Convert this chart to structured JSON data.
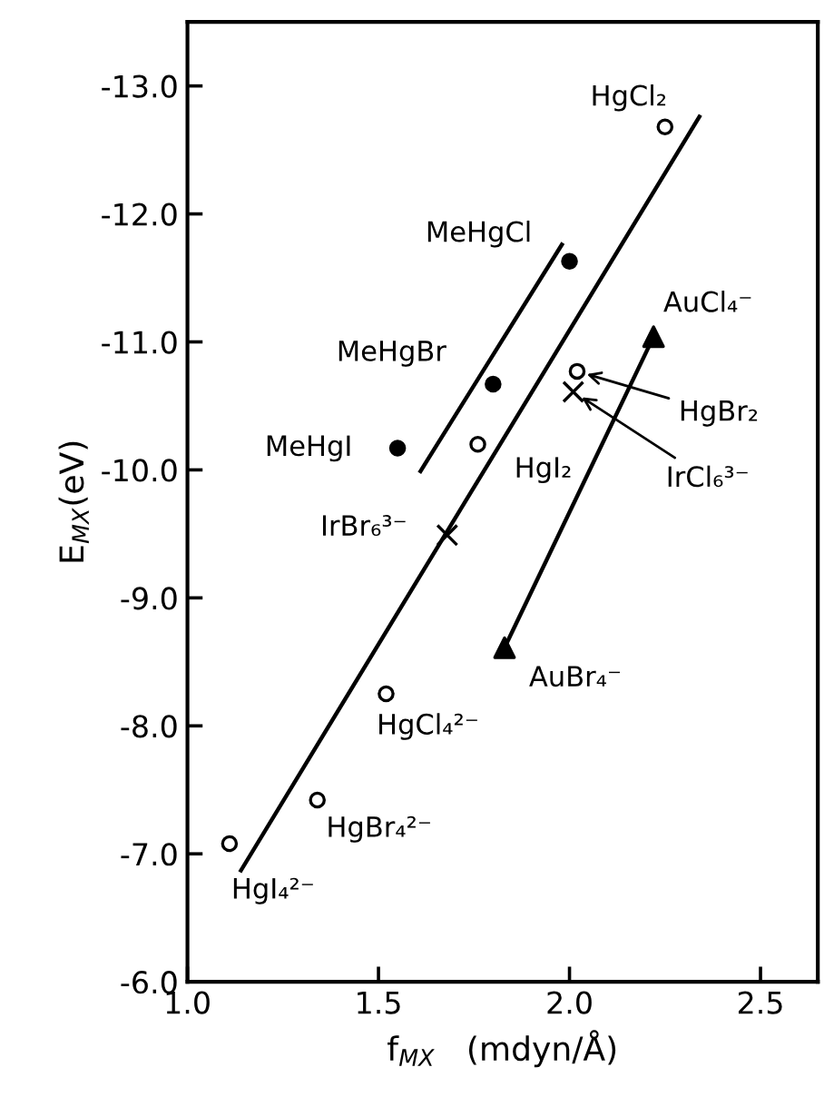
{
  "chart_data": {
    "type": "scatter",
    "xlabel": "f$_{MX}$   (mdyn/Å)",
    "ylabel": "E$_{MX}$(eV)",
    "xlim": [
      1.0,
      2.65
    ],
    "ylim": [
      -6.0,
      -13.5
    ],
    "xticks": [
      {
        "value": 1.0,
        "label": "1.0"
      },
      {
        "value": 1.5,
        "label": "1.5"
      },
      {
        "value": 2.0,
        "label": "2.0"
      },
      {
        "value": 2.5,
        "label": "2.5"
      }
    ],
    "yticks": [
      {
        "value": -6.0,
        "label": "-6.0"
      },
      {
        "value": -7.0,
        "label": "-7.0"
      },
      {
        "value": -8.0,
        "label": "-8.0"
      },
      {
        "value": -9.0,
        "label": "-9.0"
      },
      {
        "value": -10.0,
        "label": "-10.0"
      },
      {
        "value": -11.0,
        "label": "-11.0"
      },
      {
        "value": -12.0,
        "label": "-12.0"
      },
      {
        "value": -13.0,
        "label": "-13.0"
      }
    ],
    "grid": false,
    "legend": false,
    "series": [
      {
        "type": "scatter",
        "marker": "circle_open",
        "color": "#000000",
        "x": [
          2.25,
          1.76,
          2.02,
          1.52,
          1.34,
          1.11
        ],
        "values": [
          -12.68,
          -10.2,
          -10.77,
          -8.25,
          -7.42,
          -7.08
        ]
      },
      {
        "type": "scatter",
        "marker": "circle",
        "color": "#000000",
        "x": [
          2.0,
          1.8,
          1.55
        ],
        "values": [
          -11.63,
          -10.67,
          -10.17
        ]
      },
      {
        "type": "scatter",
        "marker": "cross",
        "color": "#000000",
        "x": [
          1.68,
          2.01
        ],
        "values": [
          -9.49,
          -10.61
        ]
      },
      {
        "type": "scatter",
        "marker": "triangle",
        "color": "#000000",
        "x": [
          2.22,
          1.83
        ],
        "values": [
          -11.04,
          -8.61
        ]
      },
      {
        "type": "line",
        "marker": "none",
        "color": "#000000",
        "x": [
          1.14,
          2.34
        ],
        "values": [
          -6.87,
          -12.76
        ]
      },
      {
        "type": "line",
        "marker": "none",
        "color": "#000000",
        "x": [
          1.61,
          1.98
        ],
        "values": [
          -9.99,
          -11.76
        ]
      },
      {
        "type": "line",
        "marker": "none",
        "color": "#000000",
        "x": [
          1.83,
          2.22
        ],
        "values": [
          -8.61,
          -11.04
        ]
      }
    ],
    "annotations": [
      {
        "text": "HgCl₂",
        "x": 2.25,
        "y": -12.68
      },
      {
        "text": "MeHgCl",
        "x": 2.0,
        "y": -11.63
      },
      {
        "text": "MeHgBr",
        "x": 1.8,
        "y": -10.67
      },
      {
        "text": "MeHgI",
        "x": 1.55,
        "y": -10.17
      },
      {
        "text": "HgI₂",
        "x": 1.76,
        "y": -10.2
      },
      {
        "text": "IrBr₆³⁻",
        "x": 1.68,
        "y": -9.49
      },
      {
        "text": "HgBr₂",
        "x": 2.02,
        "y": -10.77
      },
      {
        "text": "IrCl₆³⁻",
        "x": 2.01,
        "y": -10.61
      },
      {
        "text": "AuCl₄⁻",
        "x": 2.22,
        "y": -11.04
      },
      {
        "text": "AuBr₄⁻",
        "x": 1.83,
        "y": -8.61
      },
      {
        "text": "HgCl₄²⁻",
        "x": 1.52,
        "y": -8.25
      },
      {
        "text": "HgBr₄²⁻",
        "x": 1.34,
        "y": -7.42
      },
      {
        "text": "HgI₄²⁻",
        "x": 1.11,
        "y": -7.08
      }
    ]
  }
}
